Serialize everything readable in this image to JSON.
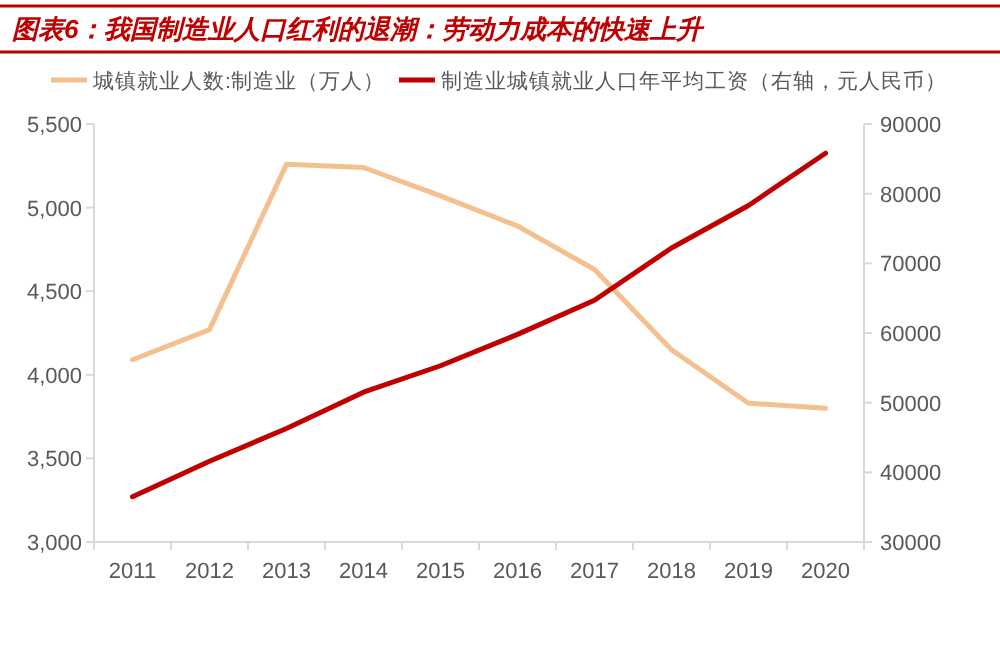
{
  "chart_data": {
    "type": "line",
    "title": "图表6：我国制造业人口红利的退潮：劳动力成本的快速上升",
    "categories": [
      "2011",
      "2012",
      "2013",
      "2014",
      "2015",
      "2016",
      "2017",
      "2018",
      "2019",
      "2020"
    ],
    "series": [
      {
        "name": "城镇就业人数:制造业（万人）",
        "color": "#f5c08f",
        "values": [
          4090,
          4270,
          5260,
          5240,
          5070,
          4890,
          4630,
          4150,
          3830,
          3800
        ]
      },
      {
        "name": "制造业城镇就业人口年平均工资（右轴，元人民币）",
        "color": "#c00000",
        "axis": "y2",
        "values": [
          36500,
          41600,
          46300,
          51500,
          55300,
          59800,
          64700,
          72200,
          78300,
          85800
        ]
      }
    ],
    "ylim": [
      3000,
      5500
    ],
    "yticks": [
      {
        "value": 3000,
        "label": "3,000"
      },
      {
        "value": 3500,
        "label": "3,500"
      },
      {
        "value": 4000,
        "label": "4,000"
      },
      {
        "value": 4500,
        "label": "4,500"
      },
      {
        "value": 5000,
        "label": "5,000"
      },
      {
        "value": 5500,
        "label": "5,500"
      }
    ],
    "y2lim": [
      30000,
      90000
    ],
    "y2ticks": [
      30000,
      40000,
      50000,
      60000,
      70000,
      80000,
      90000
    ],
    "legend": "top",
    "grid": false,
    "marker": "none",
    "line_style": "solid"
  }
}
